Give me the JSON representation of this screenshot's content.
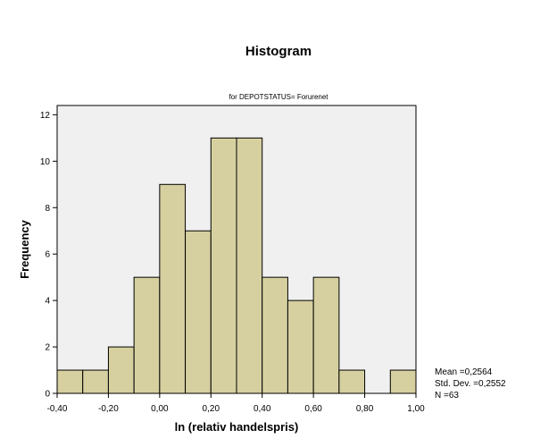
{
  "chart_data": {
    "type": "bar",
    "title": "Histogram",
    "subtitle": "for DEPOTSTATUS= Forurenet",
    "xlabel": "ln (relativ handelspris)",
    "ylabel": "Frequency",
    "xlim": [
      -0.4,
      1.0
    ],
    "ylim": [
      0,
      12.4
    ],
    "bin_width": 0.1,
    "bin_starts": [
      -0.4,
      -0.3,
      -0.2,
      -0.1,
      0.0,
      0.1,
      0.2,
      0.3,
      0.4,
      0.5,
      0.6,
      0.7,
      0.8,
      0.9
    ],
    "values": [
      1,
      1,
      2,
      5,
      9,
      7,
      11,
      11,
      5,
      4,
      5,
      1,
      0,
      1
    ],
    "x_ticks": [
      {
        "value": -0.4,
        "label": "-0,40"
      },
      {
        "value": -0.2,
        "label": "-0,20"
      },
      {
        "value": 0.0,
        "label": "0,00"
      },
      {
        "value": 0.2,
        "label": "0,20"
      },
      {
        "value": 0.4,
        "label": "0,40"
      },
      {
        "value": 0.6,
        "label": "0,60"
      },
      {
        "value": 0.8,
        "label": "0,80"
      },
      {
        "value": 1.0,
        "label": "1,00"
      }
    ],
    "y_ticks": [
      {
        "value": 0,
        "label": "0"
      },
      {
        "value": 2,
        "label": "2"
      },
      {
        "value": 4,
        "label": "4"
      },
      {
        "value": 6,
        "label": "6"
      },
      {
        "value": 8,
        "label": "8"
      },
      {
        "value": 10,
        "label": "10"
      },
      {
        "value": 12,
        "label": "12"
      }
    ],
    "stats": {
      "mean": "Mean =0,2564",
      "std_dev": "Std. Dev. =0,2552",
      "n": "N =63"
    },
    "colors": {
      "bar_fill": "#d6d0a0",
      "bar_stroke": "#000000",
      "plot_background": "#f0f0f0"
    }
  }
}
